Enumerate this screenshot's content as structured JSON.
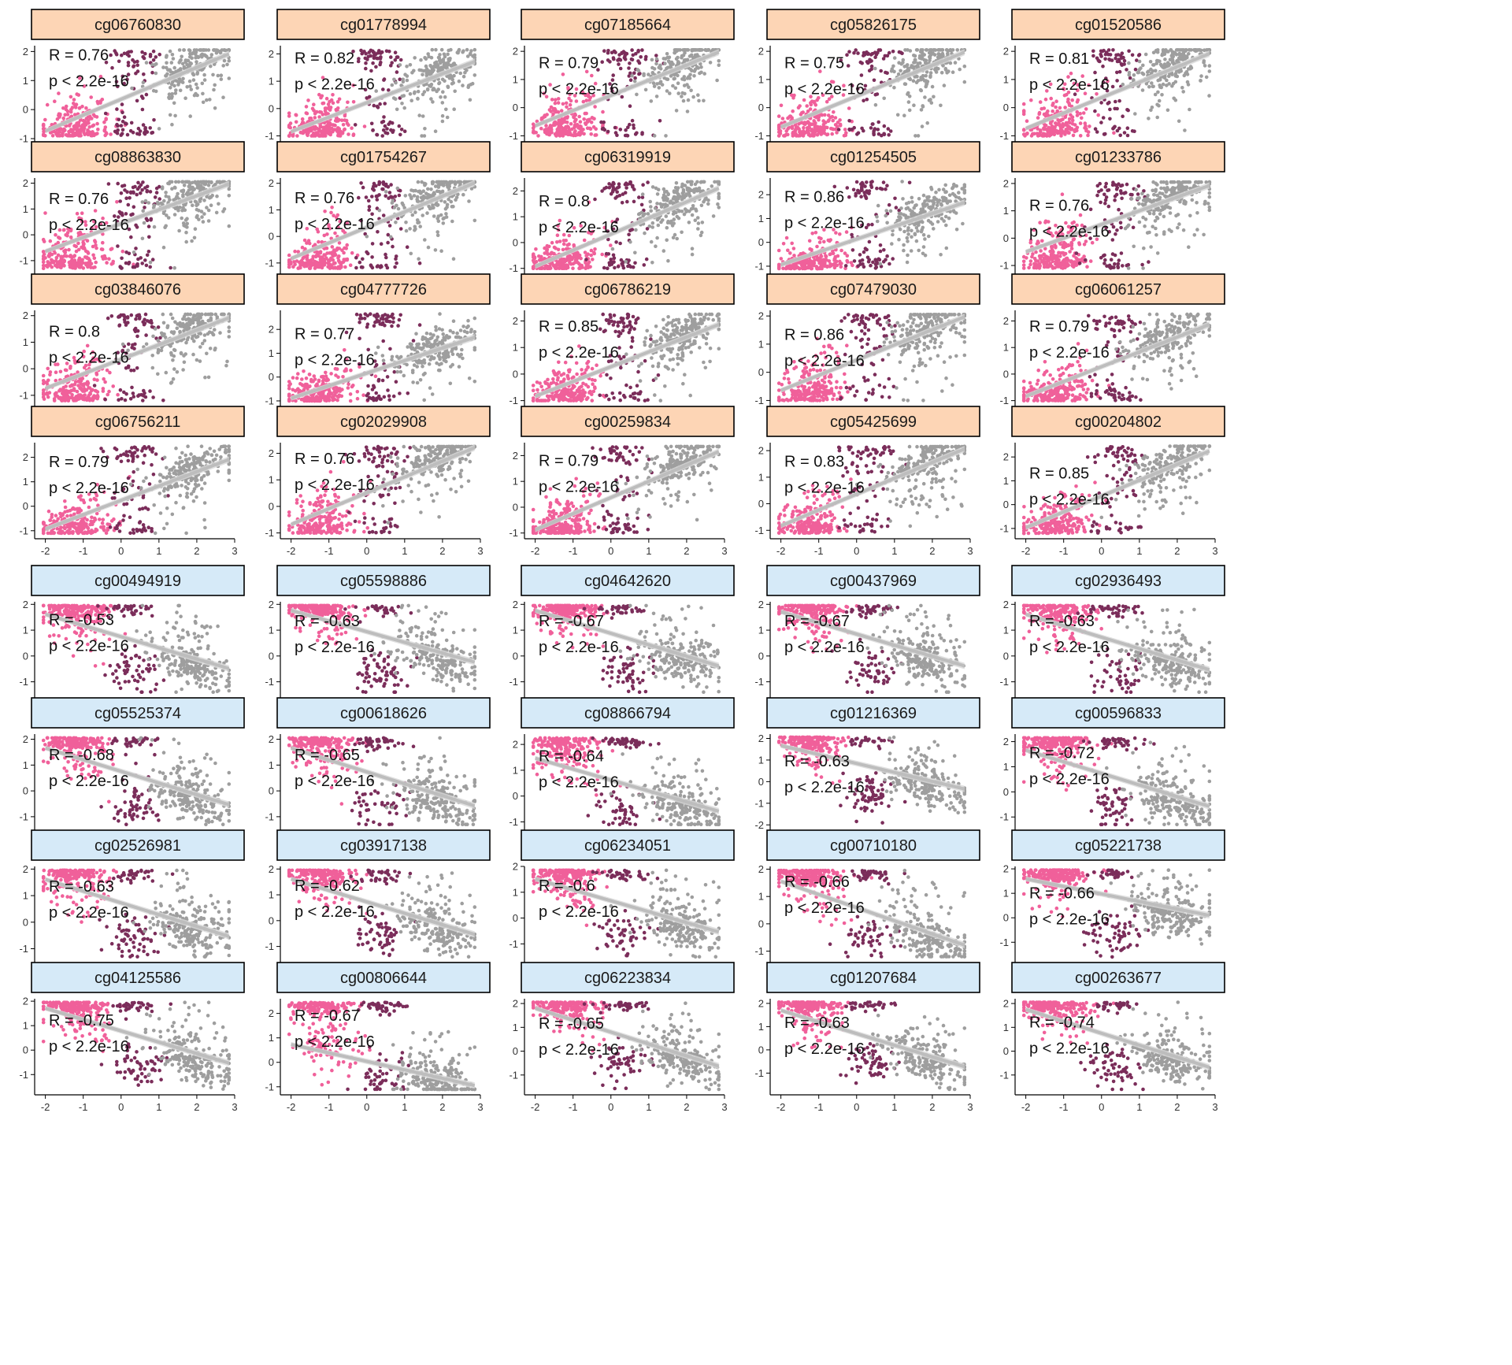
{
  "colors": {
    "positive_strip": "#FDD5B5",
    "negative_strip": "#D6EAF8",
    "strip_border": "#000000",
    "group_pink": "#F0609A",
    "group_maroon": "#7B2D5A",
    "group_gray": "#9E9E9E",
    "fit_line": "#BDBDBD"
  },
  "chart_data": {
    "type": "scatter",
    "layout": "facet-grid",
    "nrow": 8,
    "ncol": 5,
    "x_range": [
      -2.2,
      3.0
    ],
    "x_ticks": [
      "-2",
      "-1",
      "0",
      "1",
      "2",
      "3"
    ],
    "groups": [
      "pink",
      "maroon",
      "gray"
    ],
    "panels": [
      {
        "title": "cg06760830",
        "R": "R = 0.76",
        "p": "p < 2.2e-16",
        "sign": "positive",
        "ymin": -1.0,
        "ymax": 2.2,
        "ticks": [
          -1,
          0,
          1,
          2
        ],
        "fit": [
          -0.85,
          2.0
        ],
        "ann_y": 1.7,
        "variant": "A"
      },
      {
        "title": "cg01778994",
        "R": "R = 0.82",
        "p": "p < 2.2e-16",
        "sign": "positive",
        "ymin": -1.1,
        "ymax": 2.3,
        "ticks": [
          -1,
          0,
          1,
          2
        ],
        "fit": [
          -0.95,
          1.8
        ],
        "ann_y": 1.65,
        "variant": "B"
      },
      {
        "title": "cg07185664",
        "R": "R = 0.79",
        "p": "p < 2.2e-16",
        "sign": "positive",
        "ymin": -1.1,
        "ymax": 2.2,
        "ticks": [
          -1,
          0,
          1,
          2
        ],
        "fit": [
          -0.75,
          2.05
        ],
        "ann_y": 1.4,
        "variant": "C"
      },
      {
        "title": "cg05826175",
        "R": "R = 0.75",
        "p": "p < 2.2e-16",
        "sign": "positive",
        "ymin": -1.1,
        "ymax": 2.2,
        "ticks": [
          -1,
          0,
          1,
          2
        ],
        "fit": [
          -0.8,
          2.05
        ],
        "ann_y": 1.4,
        "variant": "D"
      },
      {
        "title": "cg01520586",
        "R": "R = 0.81",
        "p": "p < 2.2e-16",
        "sign": "positive",
        "ymin": -1.1,
        "ymax": 2.2,
        "ticks": [
          -1,
          0,
          1,
          2
        ],
        "fit": [
          -0.85,
          2.0
        ],
        "ann_y": 1.55,
        "variant": "E"
      },
      {
        "title": "cg08863830",
        "R": "R = 0.76",
        "p": "p < 2.2e-16",
        "sign": "positive",
        "ymin": -1.4,
        "ymax": 2.2,
        "ticks": [
          -1,
          0,
          1,
          2
        ],
        "fit": [
          -0.75,
          2.05
        ],
        "ann_y": 1.2,
        "variant": "F"
      },
      {
        "title": "cg01754267",
        "R": "R = 0.76",
        "p": "p < 2.2e-16",
        "sign": "positive",
        "ymin": -1.3,
        "ymax": 2.2,
        "ticks": [
          -1,
          0,
          1,
          2
        ],
        "fit": [
          -0.95,
          2.1
        ],
        "ann_y": 1.25,
        "variant": "G"
      },
      {
        "title": "cg06319919",
        "R": "R = 0.8",
        "p": "p < 2.2e-16",
        "sign": "positive",
        "ymin": -1.1,
        "ymax": 2.5,
        "ticks": [
          -1,
          0,
          1,
          2
        ],
        "fit": [
          -1.05,
          2.2
        ],
        "ann_y": 1.4,
        "variant": "H"
      },
      {
        "title": "cg01254505",
        "R": "R = 0.86",
        "p": "p < 2.2e-16",
        "sign": "positive",
        "ymin": -1.2,
        "ymax": 2.7,
        "ticks": [
          -1,
          0,
          1,
          2
        ],
        "fit": [
          -1.05,
          1.75
        ],
        "ann_y": 1.7,
        "variant": "I"
      },
      {
        "title": "cg01233786",
        "R": "R = 0.76",
        "p": "p < 2.2e-16",
        "sign": "positive",
        "ymin": -1.2,
        "ymax": 2.2,
        "ticks": [
          -1,
          0,
          1,
          2
        ],
        "fit": [
          -0.6,
          2.0
        ],
        "ann_y": 1.0,
        "variant": "J"
      },
      {
        "title": "cg03846076",
        "R": "R = 0.8",
        "p": "p < 2.2e-16",
        "sign": "positive",
        "ymin": -1.3,
        "ymax": 2.2,
        "ticks": [
          -1,
          0,
          1,
          2
        ],
        "fit": [
          -0.85,
          2.0
        ],
        "ann_y": 1.2,
        "variant": "K"
      },
      {
        "title": "cg04777726",
        "R": "R = 0.77",
        "p": "p < 2.2e-16",
        "sign": "positive",
        "ymin": -1.1,
        "ymax": 2.8,
        "ticks": [
          -1,
          0,
          1,
          2
        ],
        "fit": [
          -1.0,
          1.75
        ],
        "ann_y": 1.6,
        "variant": "L"
      },
      {
        "title": "cg06786219",
        "R": "R = 0.85",
        "p": "p < 2.2e-16",
        "sign": "positive",
        "ymin": -1.1,
        "ymax": 2.4,
        "ticks": [
          -1,
          0,
          1,
          2
        ],
        "fit": [
          -0.95,
          1.95
        ],
        "ann_y": 1.6,
        "variant": "M"
      },
      {
        "title": "cg07479030",
        "R": "R = 0.86",
        "p": "p < 2.2e-16",
        "sign": "positive",
        "ymin": -1.1,
        "ymax": 2.2,
        "ticks": [
          -1,
          0,
          1,
          2
        ],
        "fit": [
          -0.75,
          2.05
        ],
        "ann_y": 1.15,
        "variant": "N"
      },
      {
        "title": "cg06061257",
        "R": "R = 0.79",
        "p": "p < 2.2e-16",
        "sign": "positive",
        "ymin": -1.1,
        "ymax": 2.4,
        "ticks": [
          -1,
          0,
          1,
          2
        ],
        "fit": [
          -0.95,
          1.95
        ],
        "ann_y": 1.6,
        "variant": "O"
      },
      {
        "title": "cg06756211",
        "R": "R = 0.79",
        "p": "p < 2.2e-16",
        "sign": "positive",
        "ymin": -1.2,
        "ymax": 2.6,
        "ticks": [
          -1,
          0,
          1,
          2
        ],
        "fit": [
          -1.05,
          2.0
        ],
        "ann_y": 1.6,
        "variant": "P"
      },
      {
        "title": "cg02029908",
        "R": "R = 0.76",
        "p": "p < 2.2e-16",
        "sign": "positive",
        "ymin": -1.1,
        "ymax": 2.4,
        "ticks": [
          -1,
          0,
          1,
          2
        ],
        "fit": [
          -0.8,
          2.3
        ],
        "ann_y": 1.6,
        "variant": "Q"
      },
      {
        "title": "cg00259834",
        "R": "R = 0.79",
        "p": "p < 2.2e-16",
        "sign": "positive",
        "ymin": -1.1,
        "ymax": 2.5,
        "ticks": [
          -1,
          0,
          1,
          2
        ],
        "fit": [
          -1.0,
          2.25
        ],
        "ann_y": 1.6,
        "variant": "R"
      },
      {
        "title": "cg05425699",
        "R": "R = 0.83",
        "p": "p < 2.2e-16",
        "sign": "positive",
        "ymin": -1.2,
        "ymax": 2.3,
        "ticks": [
          -1,
          0,
          1,
          2
        ],
        "fit": [
          -0.95,
          2.15
        ],
        "ann_y": 1.4,
        "variant": "S"
      },
      {
        "title": "cg00204802",
        "R": "R = 0.85",
        "p": "p < 2.2e-16",
        "sign": "positive",
        "ymin": -1.3,
        "ymax": 2.6,
        "ticks": [
          -1,
          0,
          1,
          2
        ],
        "fit": [
          -1.1,
          2.35
        ],
        "ann_y": 1.1,
        "variant": "T"
      },
      {
        "title": "cg00494919",
        "R": "R = -0.53",
        "p": "p < 2.2e-16",
        "sign": "negative",
        "ymin": -1.5,
        "ymax": 2.1,
        "ticks": [
          -1,
          0,
          1,
          2
        ],
        "fit": [
          1.7,
          -0.55
        ],
        "ann_y": 1.2,
        "variant": "a"
      },
      {
        "title": "cg05598886",
        "R": "R = -0.63",
        "p": "p < 2.2e-16",
        "sign": "negative",
        "ymin": -1.5,
        "ymax": 2.1,
        "ticks": [
          -1,
          0,
          1,
          2
        ],
        "fit": [
          1.85,
          -0.3
        ],
        "ann_y": 1.15,
        "variant": "b"
      },
      {
        "title": "cg04642620",
        "R": "R = -0.67",
        "p": "p < 2.2e-16",
        "sign": "negative",
        "ymin": -1.5,
        "ymax": 2.1,
        "ticks": [
          -1,
          0,
          1,
          2
        ],
        "fit": [
          1.85,
          -0.45
        ],
        "ann_y": 1.15,
        "variant": "c"
      },
      {
        "title": "cg00437969",
        "R": "R = -0.67",
        "p": "p < 2.2e-16",
        "sign": "negative",
        "ymin": -1.5,
        "ymax": 2.1,
        "ticks": [
          -1,
          0,
          1,
          2
        ],
        "fit": [
          1.8,
          -0.45
        ],
        "ann_y": 1.15,
        "variant": "d"
      },
      {
        "title": "cg02936493",
        "R": "R = -0.63",
        "p": "p < 2.2e-16",
        "sign": "negative",
        "ymin": -1.5,
        "ymax": 2.1,
        "ticks": [
          -1,
          0,
          1,
          2
        ],
        "fit": [
          1.7,
          -0.6
        ],
        "ann_y": 1.15,
        "variant": "e"
      },
      {
        "title": "cg05525374",
        "R": "R = -0.68",
        "p": "p < 2.2e-16",
        "sign": "negative",
        "ymin": -1.4,
        "ymax": 2.2,
        "ticks": [
          -1,
          0,
          1,
          2
        ],
        "fit": [
          1.75,
          -0.6
        ],
        "ann_y": 1.2,
        "variant": "f"
      },
      {
        "title": "cg00618626",
        "R": "R = -0.65",
        "p": "p < 2.2e-16",
        "sign": "negative",
        "ymin": -1.4,
        "ymax": 2.2,
        "ticks": [
          -1,
          0,
          1,
          2
        ],
        "fit": [
          1.75,
          -0.65
        ],
        "ann_y": 1.2,
        "variant": "g"
      },
      {
        "title": "cg08866794",
        "R": "R = -0.64",
        "p": "p < 2.2e-16",
        "sign": "negative",
        "ymin": -1.2,
        "ymax": 2.4,
        "ticks": [
          -1,
          0,
          1,
          2
        ],
        "fit": [
          1.55,
          -0.65
        ],
        "ann_y": 1.35,
        "variant": "h"
      },
      {
        "title": "cg01216369",
        "R": "R = -0.63",
        "p": "p < 2.2e-16",
        "sign": "negative",
        "ymin": -2.1,
        "ymax": 2.2,
        "ticks": [
          -2,
          -1,
          0,
          1,
          2
        ],
        "fit": [
          1.75,
          -0.4
        ],
        "ann_y": 0.7,
        "variant": "i"
      },
      {
        "title": "cg00596833",
        "R": "R = -0.72",
        "p": "p < 2.2e-16",
        "sign": "negative",
        "ymin": -1.4,
        "ymax": 2.3,
        "ticks": [
          -1,
          0,
          1,
          2
        ],
        "fit": [
          1.75,
          -0.65
        ],
        "ann_y": 1.35,
        "variant": "j"
      },
      {
        "title": "cg02526981",
        "R": "R = -0.63",
        "p": "p < 2.2e-16",
        "sign": "negative",
        "ymin": -1.4,
        "ymax": 2.1,
        "ticks": [
          -1,
          0,
          1,
          2
        ],
        "fit": [
          1.7,
          -0.6
        ],
        "ann_y": 1.15,
        "variant": "k"
      },
      {
        "title": "cg03917138",
        "R": "R = -0.62",
        "p": "p < 2.2e-16",
        "sign": "negative",
        "ymin": -1.5,
        "ymax": 2.1,
        "ticks": [
          -1,
          0,
          1,
          2
        ],
        "fit": [
          1.7,
          -0.6
        ],
        "ann_y": 1.15,
        "variant": "l"
      },
      {
        "title": "cg06234051",
        "R": "R = -0.6",
        "p": "p < 2.2e-16",
        "sign": "negative",
        "ymin": -1.6,
        "ymax": 2.0,
        "ticks": [
          -1,
          0,
          1,
          2
        ],
        "fit": [
          1.6,
          -0.6
        ],
        "ann_y": 1.05,
        "variant": "m"
      },
      {
        "title": "cg00710180",
        "R": "R = -0.66",
        "p": "p < 2.2e-16",
        "sign": "negative",
        "ymin": -1.3,
        "ymax": 2.1,
        "ticks": [
          -1,
          0,
          1,
          2
        ],
        "fit": [
          1.65,
          -0.85
        ],
        "ann_y": 1.35,
        "variant": "n"
      },
      {
        "title": "cg05221738",
        "R": "R = -0.66",
        "p": "p < 2.2e-16",
        "sign": "negative",
        "ymin": -1.7,
        "ymax": 2.1,
        "ticks": [
          -1,
          0,
          1,
          2
        ],
        "fit": [
          1.65,
          0.05
        ],
        "ann_y": 0.8,
        "variant": "o"
      },
      {
        "title": "cg04125586",
        "R": "R = -0.75",
        "p": "p < 2.2e-16",
        "sign": "negative",
        "ymin": -1.7,
        "ymax": 2.1,
        "ticks": [
          -1,
          0,
          1,
          2
        ],
        "fit": [
          1.8,
          -0.6
        ],
        "ann_y": 1.0,
        "variant": "p"
      },
      {
        "title": "cg00806644",
        "R": "R = -0.67",
        "p": "p < 2.2e-16",
        "sign": "negative",
        "ymin": -1.2,
        "ymax": 2.6,
        "ticks": [
          -1,
          0,
          1,
          2
        ],
        "fit": [
          0.8,
          -1.0
        ],
        "ann_y": 1.7,
        "variant": "q"
      },
      {
        "title": "cg06223834",
        "R": "R = -0.65",
        "p": "p < 2.2e-16",
        "sign": "negative",
        "ymin": -1.7,
        "ymax": 2.2,
        "ticks": [
          -1,
          0,
          1,
          2
        ],
        "fit": [
          1.9,
          -0.7
        ],
        "ann_y": 0.95,
        "variant": "r"
      },
      {
        "title": "cg01207684",
        "R": "R = -0.63",
        "p": "p < 2.2e-16",
        "sign": "negative",
        "ymin": -1.8,
        "ymax": 2.2,
        "ticks": [
          -1,
          0,
          1,
          2
        ],
        "fit": [
          1.8,
          -0.8
        ],
        "ann_y": 0.95,
        "variant": "s"
      },
      {
        "title": "cg00263677",
        "R": "R = -0.74",
        "p": "p < 2.2e-16",
        "sign": "negative",
        "ymin": -1.7,
        "ymax": 2.2,
        "ticks": [
          -1,
          0,
          1,
          2
        ],
        "fit": [
          1.85,
          -0.75
        ],
        "ann_y": 1.0,
        "variant": "t"
      }
    ]
  }
}
